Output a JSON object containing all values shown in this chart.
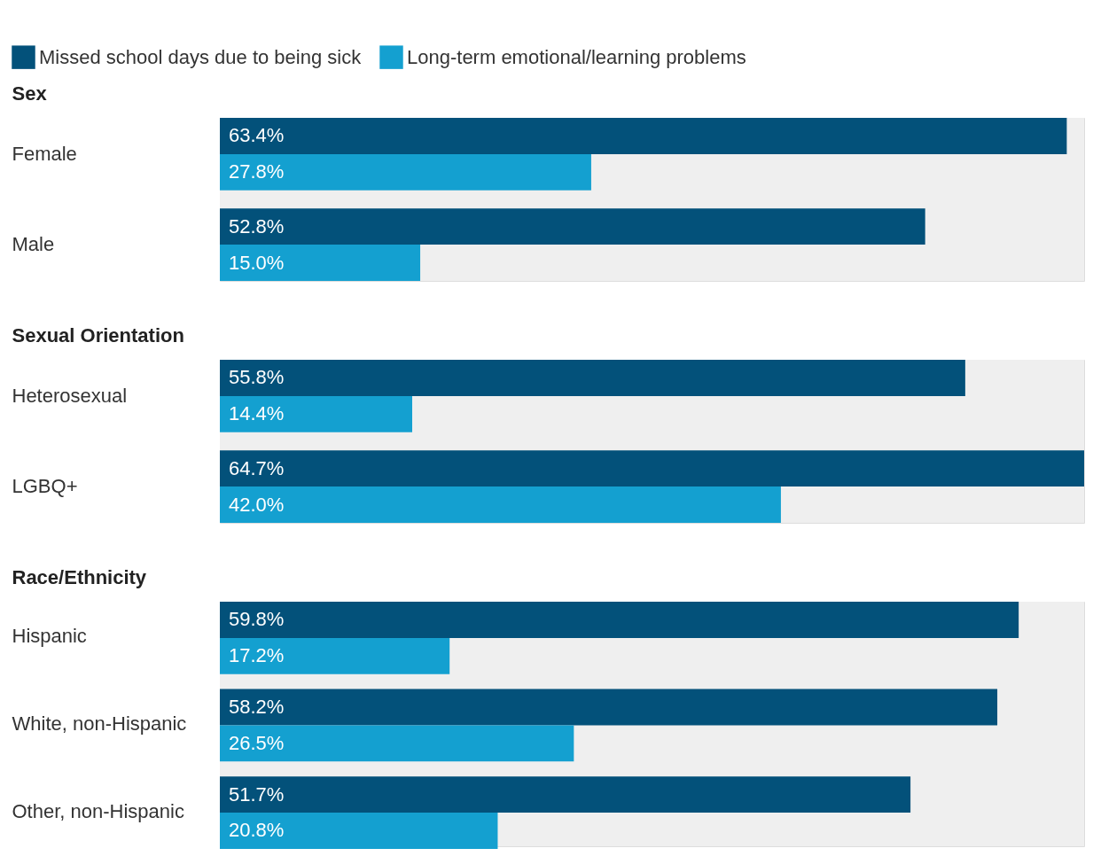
{
  "chart_data": [
    {
      "type": "bar",
      "orientation": "horizontal",
      "title": "Sex",
      "categories": [
        "Female",
        "Male"
      ],
      "xlim": [
        0,
        64.7
      ],
      "legend": "top left",
      "bands": [
        {
          "axis": "x",
          "from": 0,
          "to": 64.7,
          "color": "#efefef"
        }
      ],
      "series": [
        {
          "name": "Missed school days due to being sick",
          "color": "#03517a",
          "values": [
            63.4,
            52.8
          ],
          "value_labels": [
            "63.4%",
            "52.8%"
          ]
        },
        {
          "name": "Long-term emotional/learning problems",
          "color": "#14a0d0",
          "values": [
            27.8,
            15.0
          ],
          "value_labels": [
            "27.8%",
            "15.0%"
          ]
        }
      ]
    },
    {
      "type": "bar",
      "orientation": "horizontal",
      "title": "Sexual Orientation",
      "categories": [
        "Heterosexual",
        "LGBQ+"
      ],
      "xlim": [
        0,
        64.7
      ],
      "bands": [
        {
          "axis": "x",
          "from": 0,
          "to": 64.7,
          "color": "#efefef"
        }
      ],
      "series": [
        {
          "name": "Missed school days due to being sick",
          "color": "#03517a",
          "values": [
            55.8,
            64.7
          ],
          "value_labels": [
            "55.8%",
            "64.7%"
          ]
        },
        {
          "name": "Long-term emotional/learning problems",
          "color": "#14a0d0",
          "values": [
            14.4,
            42.0
          ],
          "value_labels": [
            "14.4%",
            "42.0%"
          ]
        }
      ]
    },
    {
      "type": "bar",
      "orientation": "horizontal",
      "title": "Race/Ethnicity",
      "categories": [
        "Hispanic",
        "White, non-Hispanic",
        "Other, non-Hispanic"
      ],
      "xlim": [
        0,
        64.7
      ],
      "bands": [
        {
          "axis": "x",
          "from": 0,
          "to": 64.7,
          "color": "#efefef"
        }
      ],
      "series": [
        {
          "name": "Missed school days due to being sick",
          "color": "#03517a",
          "values": [
            59.8,
            58.2,
            51.7
          ],
          "value_labels": [
            "59.8%",
            "58.2%",
            "51.7%"
          ]
        },
        {
          "name": "Long-term emotional/learning problems",
          "color": "#14a0d0",
          "values": [
            17.2,
            26.5,
            20.8
          ],
          "value_labels": [
            "17.2%",
            "26.5%",
            "20.8%"
          ]
        }
      ]
    }
  ]
}
